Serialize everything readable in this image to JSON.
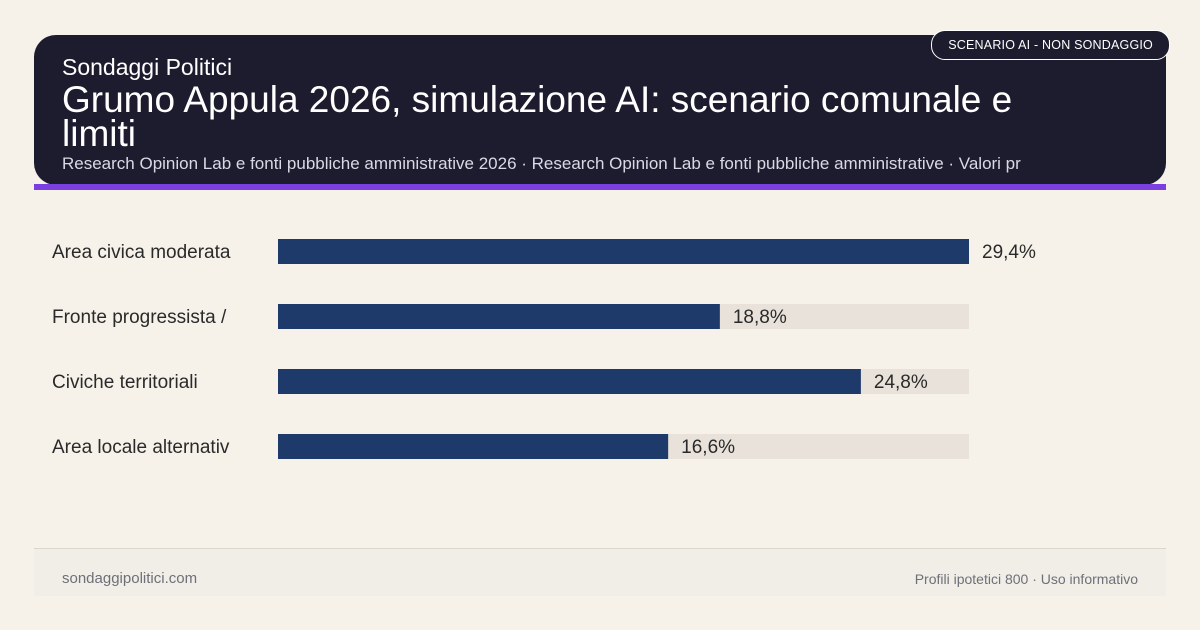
{
  "header": {
    "brand": "Sondaggi Politici",
    "title": "Grumo Appula 2026, simulazione AI: scenario comunale e limiti",
    "subtitle": "Research Opinion Lab e fonti pubbliche amministrative 2026 · Research Opinion Lab e fonti pubbliche amministrative · Valori pr",
    "badge": "SCENARIO AI - NON SONDAGGIO"
  },
  "chart_data": {
    "type": "bar",
    "orientation": "horizontal",
    "categories": [
      "Area civica moderata",
      "Fronte progressista /",
      "Civiche territoriali",
      "Area locale alternativ"
    ],
    "values": [
      29.4,
      18.8,
      24.8,
      16.6
    ],
    "value_labels": [
      "29,4%",
      "18,8%",
      "24,8%",
      "16,6%"
    ],
    "xlim": [
      0,
      29.4
    ],
    "grid": false,
    "colors": {
      "bar": "#1e3a6b",
      "track": "#e8e2da",
      "label": "#2a2a2a"
    }
  },
  "footer": {
    "site": "sondaggipolitici.com",
    "note": "Profili ipotetici 800 · Uso informativo"
  },
  "colors": {
    "header_bg": "#1c1c2e",
    "accent": "#7b3fe0",
    "page_bg": "#f6f2ea"
  }
}
